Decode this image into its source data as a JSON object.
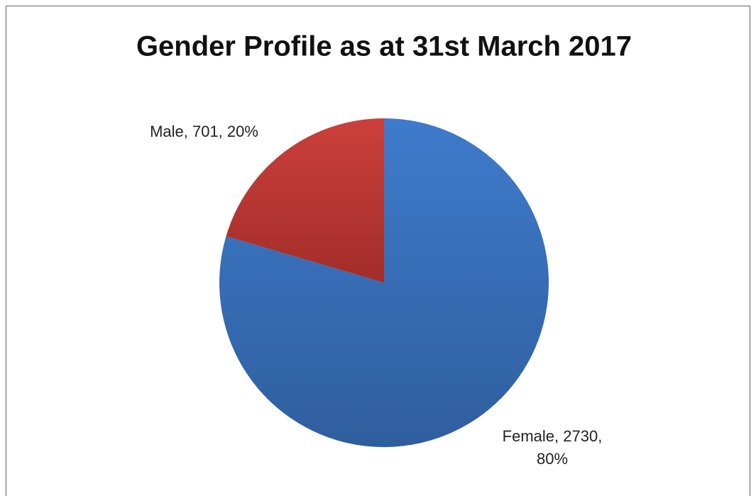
{
  "chart_data": {
    "type": "pie",
    "title": "Gender Profile as at 31st March 2017",
    "categories": [
      "Female",
      "Male"
    ],
    "values": [
      2730,
      701
    ],
    "value_labels": [
      "Female, 2730, 80%",
      "Male, 701, 20%"
    ],
    "colors": [
      "#3b72bd",
      "#be3a34"
    ]
  }
}
